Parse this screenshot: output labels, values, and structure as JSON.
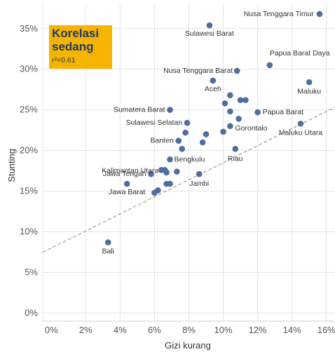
{
  "annotation": {
    "title_line1": "Korelasi",
    "title_line2": "sedang",
    "r2": "r²=0.61"
  },
  "colors": {
    "point": "#4e6e9e",
    "trendline": "#8a8a8a",
    "annotation_bg": "#f6b400",
    "annotation_text": "#1f3a66"
  },
  "chart_data": {
    "type": "scatter",
    "xlabel": "Gizi kurang",
    "ylabel": "Stunting",
    "xlim": [
      -0.5,
      16.5
    ],
    "ylim": [
      -1.0,
      38.0
    ],
    "x_ticks": [
      0,
      2,
      4,
      6,
      8,
      10,
      12,
      14,
      16
    ],
    "y_ticks": [
      0,
      5,
      10,
      15,
      20,
      25,
      30,
      35
    ],
    "x_tick_labels": [
      "0%",
      "2%",
      "4%",
      "6%",
      "8%",
      "10%",
      "12%",
      "14%",
      "16%"
    ],
    "y_tick_labels": [
      "0%",
      "5%",
      "10%",
      "15%",
      "20%",
      "25%",
      "30%",
      "35%"
    ],
    "unit": "%",
    "trendline": {
      "slope": 1.05,
      "intercept": 8.0
    },
    "points": [
      {
        "name": "Nusa Tenggara Timur",
        "x": 15.6,
        "y": 36.8
      },
      {
        "name": "Sulawesi Barat",
        "x": 9.2,
        "y": 35.4
      },
      {
        "name": "Papua Barat Daya",
        "x": 12.7,
        "y": 30.5
      },
      {
        "name": "Nusa Tenggara Barat",
        "x": 10.8,
        "y": 29.8
      },
      {
        "name": "Aceh",
        "x": 9.4,
        "y": 28.6
      },
      {
        "name": "Maluku",
        "x": 15.0,
        "y": 28.4
      },
      {
        "name": "Sumatera Barat",
        "x": 6.9,
        "y": 25.0
      },
      {
        "name": "Papua Barat",
        "x": 12.0,
        "y": 24.7
      },
      {
        "name": "Sulawesi Selatan",
        "x": 7.9,
        "y": 23.4
      },
      {
        "name": "Maluku Utara",
        "x": 14.5,
        "y": 23.3
      },
      {
        "name": "Gorontalo",
        "x": 10.4,
        "y": 23.0
      },
      {
        "name": "Banten",
        "x": 7.4,
        "y": 21.2
      },
      {
        "name": "Riau",
        "x": 10.7,
        "y": 20.2
      },
      {
        "name": "Kalimantan Utara",
        "x": 6.4,
        "y": 17.6
      },
      {
        "name": "Bengkulu",
        "x": 6.9,
        "y": 18.9
      },
      {
        "name": "Jawa Tengah",
        "x": 5.8,
        "y": 17.1
      },
      {
        "name": "Jambi",
        "x": 8.6,
        "y": 17.1
      },
      {
        "name": "Jawa Barat",
        "x": 4.4,
        "y": 15.9
      },
      {
        "name": "Bali",
        "x": 3.3,
        "y": 8.7
      },
      {
        "name": "",
        "x": 10.4,
        "y": 26.8
      },
      {
        "name": "",
        "x": 10.1,
        "y": 25.8
      },
      {
        "name": "",
        "x": 11.0,
        "y": 26.2
      },
      {
        "name": "",
        "x": 11.3,
        "y": 26.2
      },
      {
        "name": "",
        "x": 10.4,
        "y": 24.8
      },
      {
        "name": "",
        "x": 10.9,
        "y": 23.9
      },
      {
        "name": "",
        "x": 9.0,
        "y": 22.0
      },
      {
        "name": "",
        "x": 7.8,
        "y": 22.2
      },
      {
        "name": "",
        "x": 10.0,
        "y": 22.3
      },
      {
        "name": "",
        "x": 8.8,
        "y": 21.0
      },
      {
        "name": "",
        "x": 7.6,
        "y": 20.2
      },
      {
        "name": "",
        "x": 6.6,
        "y": 17.6
      },
      {
        "name": "",
        "x": 6.7,
        "y": 17.3
      },
      {
        "name": "",
        "x": 7.3,
        "y": 17.4
      },
      {
        "name": "",
        "x": 6.7,
        "y": 15.9
      },
      {
        "name": "",
        "x": 6.9,
        "y": 15.9
      },
      {
        "name": "",
        "x": 6.2,
        "y": 15.1
      },
      {
        "name": "",
        "x": 6.0,
        "y": 14.8
      }
    ]
  }
}
